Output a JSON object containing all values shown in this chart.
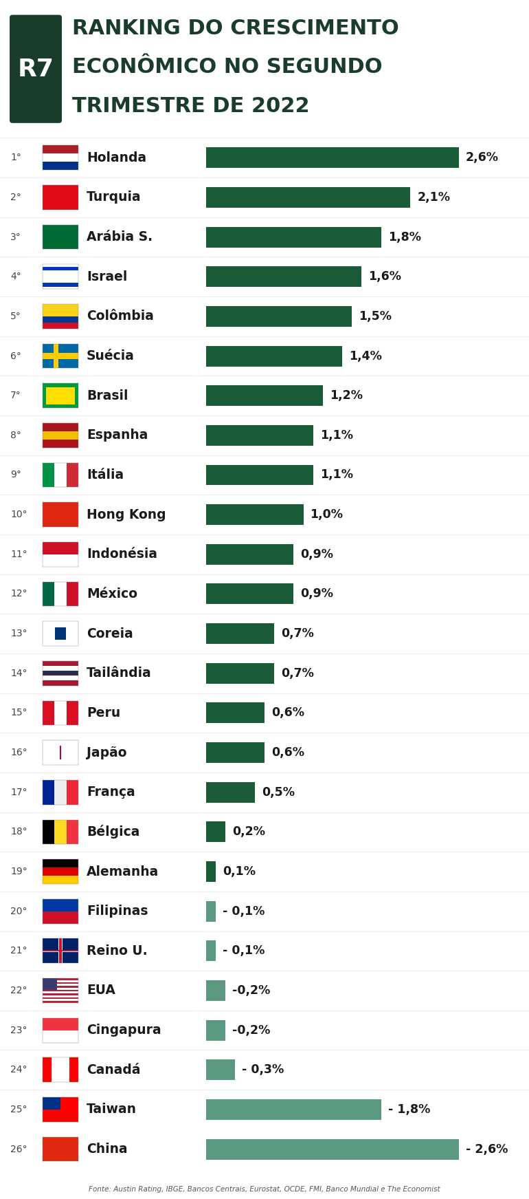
{
  "title_line1": "RANKING DO CRESCIMENTO",
  "title_line2": "ECONÔMICO NO SEGUNDO",
  "title_line3": "TRIMESTRE DE 2022",
  "title_color": "#1a3d2b",
  "bar_color_positive": "#1a5c38",
  "bar_color_negative": "#5a9980",
  "bg_color": "#ffffff",
  "fonte": "Fonte: Austin Rating, IBGE, Bancos Centrais, Eurostat, OCDE, FMI, Banco Mundial e The Economist",
  "countries": [
    {
      "rank": "1°",
      "name": "Holanda",
      "value": 2.6,
      "label": "2,6%"
    },
    {
      "rank": "2°",
      "name": "Turquia",
      "value": 2.1,
      "label": "2,1%"
    },
    {
      "rank": "3°",
      "name": "Arábia S.",
      "value": 1.8,
      "label": "1,8%"
    },
    {
      "rank": "4°",
      "name": "Israel",
      "value": 1.6,
      "label": "1,6%"
    },
    {
      "rank": "5°",
      "name": "Colômbia",
      "value": 1.5,
      "label": "1,5%"
    },
    {
      "rank": "6°",
      "name": "Suécia",
      "value": 1.4,
      "label": "1,4%"
    },
    {
      "rank": "7°",
      "name": "Brasil",
      "value": 1.2,
      "label": "1,2%"
    },
    {
      "rank": "8°",
      "name": "Espanha",
      "value": 1.1,
      "label": "1,1%"
    },
    {
      "rank": "9°",
      "name": "Itália",
      "value": 1.1,
      "label": "1,1%"
    },
    {
      "rank": "10°",
      "name": "Hong Kong",
      "value": 1.0,
      "label": "1,0%"
    },
    {
      "rank": "11°",
      "name": "Indonésia",
      "value": 0.9,
      "label": "0,9%"
    },
    {
      "rank": "12°",
      "name": "México",
      "value": 0.9,
      "label": "0,9%"
    },
    {
      "rank": "13°",
      "name": "Coreia",
      "value": 0.7,
      "label": "0,7%"
    },
    {
      "rank": "14°",
      "name": "Tailândia",
      "value": 0.7,
      "label": "0,7%"
    },
    {
      "rank": "15°",
      "name": "Peru",
      "value": 0.6,
      "label": "0,6%"
    },
    {
      "rank": "16°",
      "name": "Japão",
      "value": 0.6,
      "label": "0,6%"
    },
    {
      "rank": "17°",
      "name": "França",
      "value": 0.5,
      "label": "0,5%"
    },
    {
      "rank": "18°",
      "name": "Bélgica",
      "value": 0.2,
      "label": "0,2%"
    },
    {
      "rank": "19°",
      "name": "Alemanha",
      "value": 0.1,
      "label": "0,1%"
    },
    {
      "rank": "20°",
      "name": "Filipinas",
      "value": -0.1,
      "label": "- 0,1%"
    },
    {
      "rank": "21°",
      "name": "Reino U.",
      "value": -0.1,
      "label": "- 0,1%"
    },
    {
      "rank": "22°",
      "name": "EUA",
      "value": -0.2,
      "label": "-0,2%"
    },
    {
      "rank": "23°",
      "name": "Cingapura",
      "value": -0.2,
      "label": "-0,2%"
    },
    {
      "rank": "24°",
      "name": "Canadá",
      "value": -0.3,
      "label": "- 0,3%"
    },
    {
      "rank": "25°",
      "name": "Taiwan",
      "value": -1.8,
      "label": "- 1,8%"
    },
    {
      "rank": "26°",
      "name": "China",
      "value": -2.6,
      "label": "- 2,6%"
    }
  ],
  "flags": [
    {
      "colors": [
        "#AE1C28",
        "#AE1C28",
        "#003087"
      ],
      "type": "triband_h"
    },
    {
      "colors": [
        "#E30A17"
      ],
      "type": "solid_red"
    },
    {
      "colors": [
        "#006C35"
      ],
      "type": "solid_green"
    },
    {
      "colors": [
        "#FFFFFF",
        "#0038B8",
        "#FFFFFF"
      ],
      "type": "triband_h"
    },
    {
      "colors": [
        "#FCD116",
        "#003893",
        "#CE1126"
      ],
      "type": "triband_h"
    },
    {
      "colors": [
        "#006AA7",
        "#FECC02",
        "#006AA7"
      ],
      "type": "triband_h"
    },
    {
      "colors": [
        "#009B3A",
        "#009B3A",
        "#009B3A"
      ],
      "type": "solid_green"
    },
    {
      "colors": [
        "#AA151B",
        "#F1BF00",
        "#AA151B"
      ],
      "type": "triband_h"
    },
    {
      "colors": [
        "#009246",
        "#FFFFFF",
        "#CE2B37"
      ],
      "type": "triband_v"
    },
    {
      "colors": [
        "#DE2910"
      ],
      "type": "solid_red"
    },
    {
      "colors": [
        "#CE1126",
        "#FFFFFF",
        "#CE1126"
      ],
      "type": "biband_h"
    },
    {
      "colors": [
        "#006847",
        "#FFFFFF",
        "#CE1126"
      ],
      "type": "triband_v"
    },
    {
      "colors": [
        "#FFFFFF"
      ],
      "type": "circle_flag"
    },
    {
      "colors": [
        "#A51931",
        "#F4F5F8",
        "#2D2A4A"
      ],
      "type": "triband_h"
    },
    {
      "colors": [
        "#D91023",
        "#FFFFFF",
        "#D91023"
      ],
      "type": "triband_v"
    },
    {
      "colors": [
        "#FFFFFF",
        "#BC002D",
        "#FFFFFF"
      ],
      "type": "circle_dot"
    },
    {
      "colors": [
        "#002395",
        "#EDEDED",
        "#ED2939"
      ],
      "type": "triband_v"
    },
    {
      "colors": [
        "#000000",
        "#FDDA24",
        "#EF3340"
      ],
      "type": "triband_h"
    },
    {
      "colors": [
        "#000000",
        "#DD0000",
        "#FFCE00"
      ],
      "type": "triband_h"
    },
    {
      "colors": [
        "#0038A8",
        "#CE1127",
        "#FFFFFF"
      ],
      "type": "ph_flag"
    },
    {
      "colors": [
        "#012169",
        "#FFFFFF",
        "#C8102E"
      ],
      "type": "uk_flag"
    },
    {
      "colors": [
        "#B22234",
        "#FFFFFF",
        "#3C3B6E"
      ],
      "type": "us_flag"
    },
    {
      "colors": [
        "#EF3340"
      ],
      "type": "solid_red"
    },
    {
      "colors": [
        "#FF0000",
        "#FFFFFF",
        "#FF0000"
      ],
      "type": "triband_v"
    },
    {
      "colors": [
        "#FE0000",
        "#003087",
        "#FFFFFF"
      ],
      "type": "taiwan"
    },
    {
      "colors": [
        "#DE2910"
      ],
      "type": "solid_red"
    }
  ]
}
